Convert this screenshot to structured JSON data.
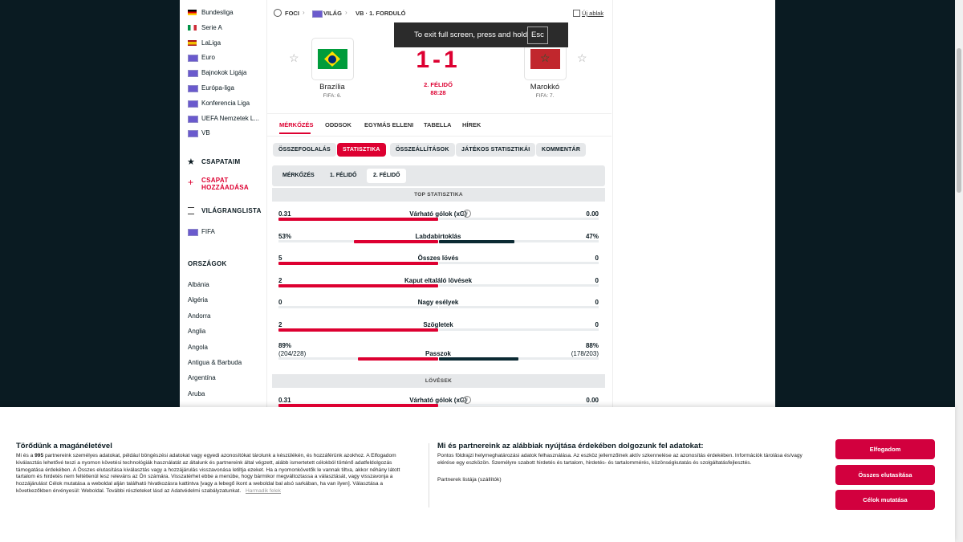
{
  "sidebar": {
    "leagues": [
      "Bundesliga",
      "Serie A",
      "LaLiga",
      "Euro",
      "Bajnokok Ligája",
      "Európa-liga",
      "Konferencia Liga",
      "UEFA Nemzetek L...",
      "VB"
    ],
    "my_teams_title": "CSAPATAIM",
    "add_team": "CSAPAT HOZZÁADÁSA",
    "ranking_title": "VILÁGRANGLISTA",
    "ranking_item": "FIFA",
    "countries_title": "ORSZÁGOK",
    "countries": [
      "Albánia",
      "Algéria",
      "Andorra",
      "Anglia",
      "Angola",
      "Antigua & Barbuda",
      "Argentína",
      "Aruba"
    ]
  },
  "breadcrumb": [
    "FOCI",
    "VILÁG",
    "VB · 1. FORDULÓ"
  ],
  "new_window": "Új ablak",
  "fullscreen_toast": {
    "text": "To exit full screen, press and hold",
    "key": "Esc"
  },
  "match": {
    "home": {
      "name": "Brazília",
      "rank": "FIFA: 6."
    },
    "away": {
      "name": "Marokkó",
      "rank": "FIFA: 7."
    },
    "score": "1-1",
    "status": "2. FÉLIDŐ",
    "clock": "88:28"
  },
  "tabs": [
    "MÉRKŐZÉS",
    "ODDSOK",
    "EGYMÁS ELLENI",
    "TABELLA",
    "HÍREK"
  ],
  "subtabs": [
    "ÖSSZEFOGLALÁS",
    "STATISZTIKA",
    "ÖSSZEÁLLÍTÁSOK",
    "JÁTÉKOS STATISZTIKÁI",
    "KOMMENTÁR"
  ],
  "periods": [
    "MÉRKŐZÉS",
    "1. FÉLIDŐ",
    "2. FÉLIDŐ"
  ],
  "top_stats_title": "TOP STATISZTIKA",
  "top_stats": [
    {
      "label": "Várható gólok (xG)",
      "home": "0.31",
      "away": "0.00"
    },
    {
      "label": "Labdabirtoklás",
      "home": "53%",
      "away": "47%"
    },
    {
      "label": "Összes lövés",
      "home": "5",
      "away": "0"
    },
    {
      "label": "Kaput eltaláló lövések",
      "home": "2",
      "away": "0"
    },
    {
      "label": "Nagy esélyek",
      "home": "0",
      "away": "0"
    },
    {
      "label": "Szögletek",
      "home": "2",
      "away": "0"
    },
    {
      "label": "Passzok",
      "home": "89%",
      "away": "88%",
      "home_detail": "(204/228)",
      "away_detail": "(178/203)"
    }
  ],
  "shots_title": "LÖVÉSEK",
  "shots_stats": [
    {
      "label": "Várható gólok (xG)",
      "home": "0.31",
      "away": "0.00"
    }
  ],
  "consent": {
    "title": "Törődünk a magánéletével",
    "text_start": "Mi és a",
    "partner_count": "995",
    "text_rest": "partnereink személyes adatokat, például böngészési adatokat vagy egyedi azonosítókat tárolunk a készülékén, és hozzáférünk azokhoz. A Elfogadom kiválasztás lehetővé teszi a nyomon követési technológiák használatát az általunk és partnereink által végzett, alább ismertetett célokból történő adatfeldolgozás támogatása érdekében. A Összes elutasítása kiválasztás vagy a hozzájárulás visszavonása letiltja ezeket. Ha a nyomonkövetők le vannak tiltva, akkor néhány látott tartalom és hirdetés nem feltétlenül lesz releváns az Ön számára. Visszatérhet ebbe a menübe, hogy bármikor megváltoztassa a választását, vagy visszavonja a hozzájárulást Célok mutatása a weboldal alján található hivatkozásra kattintva [vagy a lebegő ikont a weboldal bal alsó sarkában, ha van ilyen]. Választása a következőkben érvényesül: Weboldal. További részleteket lásd az Adatvédelmi szabályzatunkat.",
    "third_parties": "Harmadik felek",
    "purposes_title": "Mi és partnereink az alábbiak nyújtása érdekében dolgozunk fel adatokat:",
    "purposes_text": "Pontos földrajzi helymeghatározási adatok felhasználása. Az eszköz jellemzőinek aktív szkennelése az azonosítás érdekében. Információk tárolása és/vagy elérése egy eszközön. Személyre szabott hirdetés és tartalom, hirdetés- és tartalommérés, közönségkutatás és szolgáltatásfejlesztés.",
    "partners_link": "Partnerek listája (szállítók)",
    "buttons": [
      "Elfogadom",
      "Összes elutasítása",
      "Célok mutatása"
    ]
  }
}
